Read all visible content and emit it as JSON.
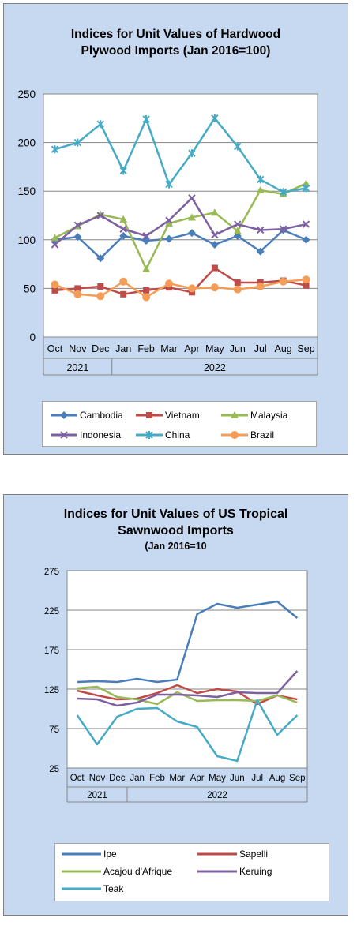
{
  "charts": [
    {
      "title_line1": "Indices for Unit Values of Hardwood",
      "title_line2": "Plywood Imports (Jan 2016=100)",
      "chart_data": {
        "type": "line",
        "title": "Indices for Unit Values of Hardwood Plywood Imports (Jan 2016=100)",
        "categories": [
          "Oct",
          "Nov",
          "Dec",
          "Jan",
          "Feb",
          "Mar",
          "Apr",
          "May",
          "Jun",
          "Jul",
          "Aug",
          "Sep"
        ],
        "year_groups": [
          {
            "label": "2021",
            "count": 3
          },
          {
            "label": "2022",
            "count": 9
          }
        ],
        "ylim": [
          0,
          250
        ],
        "yticks": [
          0,
          50,
          100,
          150,
          200,
          250
        ],
        "grid": true,
        "legend_position": "bottom",
        "series": [
          {
            "name": "Cambodia",
            "color": "#4a7ebb",
            "marker": "diamond",
            "values": [
              100,
              103,
              81,
              104,
              99,
              101,
              107,
              95,
              104,
              88,
              110,
              100
            ]
          },
          {
            "name": "Vietnam",
            "color": "#be4b48",
            "marker": "square",
            "values": [
              48,
              50,
              52,
              44,
              48,
              51,
              46,
              71,
              56,
              56,
              58,
              53
            ]
          },
          {
            "name": "Malaysia",
            "color": "#98b954",
            "marker": "triangle",
            "values": [
              102,
              114,
              126,
              121,
              70,
              117,
              123,
              128,
              109,
              151,
              147,
              158
            ]
          },
          {
            "name": "Indonesia",
            "color": "#7d60a0",
            "marker": "x",
            "values": [
              95,
              115,
              125,
              111,
              104,
              120,
              143,
              105,
              116,
              110,
              111,
              116
            ]
          },
          {
            "name": "China",
            "color": "#46aac5",
            "marker": "star",
            "values": [
              193,
              200,
              219,
              171,
              224,
              157,
              189,
              225,
              196,
              162,
              149,
              153
            ]
          },
          {
            "name": "Brazil",
            "color": "#f59d56",
            "marker": "circle",
            "values": [
              54,
              44,
              42,
              57,
              41,
              55,
              50,
              51,
              49,
              52,
              57,
              59
            ]
          }
        ]
      }
    },
    {
      "title_line1": "Indices for Unit Values of US Tropical",
      "title_line2": "Sawnwood Imports",
      "subtitle": "(Jan 2016=10",
      "chart_data": {
        "type": "line",
        "title": "Indices for Unit Values of US Tropical Sawnwood Imports",
        "subtitle": "(Jan 2016=10",
        "categories": [
          "Oct",
          "Nov",
          "Dec",
          "Jan",
          "Feb",
          "Mar",
          "Apr",
          "May",
          "Jun",
          "Jul",
          "Aug",
          "Sep"
        ],
        "year_groups": [
          {
            "label": "2021",
            "count": 3
          },
          {
            "label": "2022",
            "count": 9
          }
        ],
        "ylim": [
          25,
          275
        ],
        "yticks": [
          25,
          75,
          125,
          175,
          225,
          275
        ],
        "grid": true,
        "legend_position": "bottom",
        "series": [
          {
            "name": "Ipe",
            "color": "#4a7ebb",
            "values": [
              134,
              135,
              134,
              138,
              134,
              137,
              220,
              233,
              228,
              232,
              236,
              215
            ]
          },
          {
            "name": "Sapelli",
            "color": "#be4b48",
            "values": [
              123,
              117,
              112,
              113,
              120,
              130,
              120,
              125,
              122,
              106,
              117,
              112
            ]
          },
          {
            "name": "Acajou d'Afrique",
            "color": "#98b954",
            "values": [
              126,
              128,
              115,
              112,
              106,
              121,
              110,
              111,
              111,
              110,
              117,
              108
            ]
          },
          {
            "name": "Keruing",
            "color": "#7d60a0",
            "values": [
              113,
              112,
              104,
              108,
              118,
              118,
              117,
              115,
              121,
              120,
              120,
              148
            ]
          },
          {
            "name": "Teak",
            "color": "#46aac5",
            "values": [
              92,
              55,
              90,
              100,
              101,
              84,
              77,
              40,
              34,
              111,
              67,
              92
            ]
          }
        ]
      }
    }
  ]
}
